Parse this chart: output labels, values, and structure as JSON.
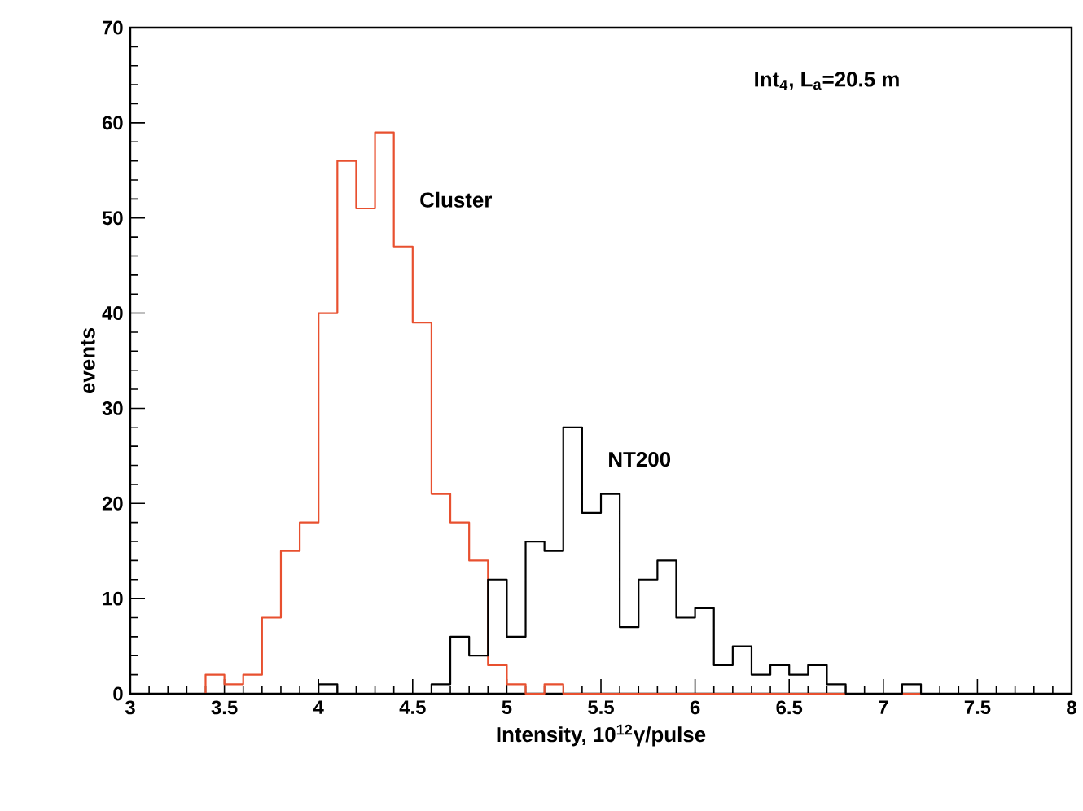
{
  "chart_data": {
    "type": "histogram",
    "xlabel": "Intensity, 10$^{12}$γ/pulse",
    "ylabel": "events",
    "annotations": [
      "Int$_{4}$, L$_{a}$=20.5 m"
    ],
    "bins": [
      3.0,
      3.1,
      3.2,
      3.3,
      3.4,
      3.5,
      3.6,
      3.7,
      3.8,
      3.9,
      4.0,
      4.1,
      4.2,
      4.3,
      4.4,
      4.5,
      4.6,
      4.7,
      4.8,
      4.9,
      5.0,
      5.1,
      5.2,
      5.3,
      5.4,
      5.5,
      5.6,
      5.7,
      5.8,
      5.9,
      6.0,
      6.1,
      6.2,
      6.3,
      6.4,
      6.5,
      6.6,
      6.7,
      6.8,
      6.9,
      7.0,
      7.1,
      7.2,
      7.3,
      7.4,
      7.5,
      7.6,
      7.7,
      7.8,
      7.9,
      8.0
    ],
    "series": [
      {
        "name": "Cluster",
        "color": "#e8502f",
        "values": [
          0,
          0,
          0,
          0,
          2,
          1,
          2,
          8,
          15,
          18,
          40,
          56,
          51,
          59,
          47,
          39,
          21,
          18,
          14,
          3,
          1,
          0,
          1,
          0,
          0,
          0,
          0,
          0,
          0,
          0,
          0,
          0,
          0,
          0,
          0,
          0,
          0,
          0,
          0,
          0,
          0,
          0,
          0,
          0,
          0,
          0,
          0,
          0,
          0,
          0
        ]
      },
      {
        "name": "NT200",
        "color": "#000000",
        "values": [
          0,
          0,
          0,
          0,
          0,
          0,
          0,
          0,
          0,
          0,
          1,
          0,
          0,
          0,
          0,
          0,
          1,
          6,
          4,
          12,
          6,
          16,
          15,
          28,
          19,
          21,
          7,
          12,
          14,
          8,
          9,
          3,
          5,
          2,
          3,
          2,
          3,
          1,
          0,
          0,
          0,
          1,
          0,
          0,
          0,
          0,
          0,
          0,
          0,
          0
        ]
      }
    ],
    "xlim": [
      3,
      8
    ],
    "ylim": [
      0,
      70
    ],
    "xticks": [
      3,
      3.5,
      4,
      4.5,
      5,
      5.5,
      6,
      6.5,
      7,
      7.5,
      8
    ],
    "yticks": [
      0,
      10,
      20,
      30,
      40,
      50,
      60,
      70
    ],
    "grid": false,
    "legend": false
  }
}
